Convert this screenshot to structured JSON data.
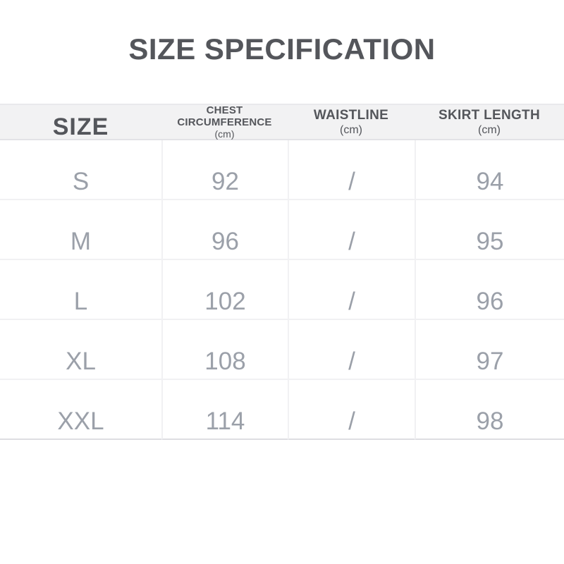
{
  "title": "SIZE SPECIFICATION",
  "colors": {
    "title_text": "#54565b",
    "header_background": "#f2f2f3",
    "data_text": "#9ba0a9",
    "grid_line": "#f1f1f3",
    "bottom_rule": "#dedee2"
  },
  "table": {
    "columns": [
      {
        "key": "size",
        "label": "SIZE",
        "unit": ""
      },
      {
        "key": "chest",
        "label": "CHEST CIRCUMFERENCE",
        "unit": "(cm)"
      },
      {
        "key": "waist",
        "label": "WAISTLINE",
        "unit": "(cm)"
      },
      {
        "key": "skirt",
        "label": "SKIRT LENGTH",
        "unit": "(cm)"
      }
    ],
    "rows": [
      {
        "size": "S",
        "chest": "92",
        "waist": "/",
        "skirt": "94"
      },
      {
        "size": "M",
        "chest": "96",
        "waist": "/",
        "skirt": "95"
      },
      {
        "size": "L",
        "chest": "102",
        "waist": "/",
        "skirt": "96"
      },
      {
        "size": "XL",
        "chest": "108",
        "waist": "/",
        "skirt": "97"
      },
      {
        "size": "XXL",
        "chest": "114",
        "waist": "/",
        "skirt": "98"
      }
    ]
  },
  "chart_data": {
    "type": "table",
    "title": "SIZE SPECIFICATION",
    "columns": [
      "SIZE",
      "CHEST CIRCUMFERENCE (cm)",
      "WAISTLINE (cm)",
      "SKIRT LENGTH (cm)"
    ],
    "rows": [
      [
        "S",
        "92",
        "/",
        "94"
      ],
      [
        "M",
        "96",
        "/",
        "95"
      ],
      [
        "L",
        "102",
        "/",
        "96"
      ],
      [
        "XL",
        "108",
        "/",
        "97"
      ],
      [
        "XXL",
        "114",
        "/",
        "98"
      ]
    ]
  }
}
